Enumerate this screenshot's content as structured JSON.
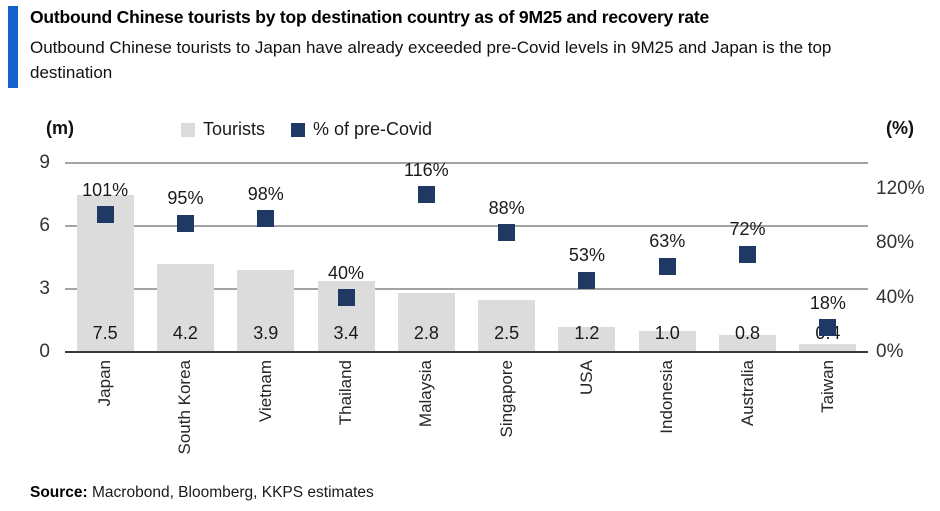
{
  "header": {
    "title": "Outbound Chinese tourists by top destination country as of 9M25 and recovery rate",
    "subtitle": "Outbound Chinese tourists to Japan have already exceeded pre-Covid levels in 9M25 and Japan is the top destination"
  },
  "chart_data": {
    "type": "bar",
    "title": "Outbound Chinese tourists by top destination country as of 9M25 and recovery rate",
    "categories": [
      "Japan",
      "South Korea",
      "Vietnam",
      "Thailand",
      "Malaysia",
      "Singapore",
      "USA",
      "Indonesia",
      "Australia",
      "Taiwan"
    ],
    "series": [
      {
        "name": "Tourists",
        "type": "bar",
        "axis": "left",
        "values": [
          7.5,
          4.2,
          3.9,
          3.4,
          2.8,
          2.5,
          1.2,
          1.0,
          0.8,
          0.4
        ],
        "labels": [
          "7.5",
          "4.2",
          "3.9",
          "3.4",
          "2.8",
          "2.5",
          "1.2",
          "1.0",
          "0.8",
          "0.4"
        ],
        "color": "#DCDCDC"
      },
      {
        "name": "% of pre-Covid",
        "type": "scatter",
        "axis": "right",
        "values": [
          101,
          95,
          98,
          40,
          116,
          88,
          53,
          63,
          72,
          18
        ],
        "labels": [
          "101%",
          "95%",
          "98%",
          "40%",
          "116%",
          "88%",
          "53%",
          "63%",
          "72%",
          "18%"
        ],
        "color": "#1F3864"
      }
    ],
    "left_axis": {
      "unit_label": "(m)",
      "tick_values": [
        0,
        3,
        6,
        9
      ],
      "tick_labels": [
        "0",
        "3",
        "6",
        "9"
      ],
      "range": [
        0,
        9
      ]
    },
    "right_axis": {
      "unit_label": "(%)",
      "tick_values": [
        0,
        40,
        80,
        120
      ],
      "tick_labels": [
        "0%",
        "40%",
        "80%",
        "120%"
      ],
      "range": [
        0,
        139
      ]
    },
    "legend": [
      {
        "label": "Tourists",
        "color": "#DCDCDC"
      },
      {
        "label": "% of pre-Covid",
        "color": "#1F3864"
      }
    ],
    "legend_position": "top",
    "grid": true
  },
  "colors": {
    "accent_bar": "#1262CB",
    "bar_fill": "#DCDCDC",
    "marker_fill": "#1F3864",
    "gridline": "#A3A3A3",
    "baseline": "#3B3B3B"
  },
  "footer": {
    "source_label": "Source:",
    "source_text": " Macrobond, Bloomberg, KKPS estimates"
  }
}
